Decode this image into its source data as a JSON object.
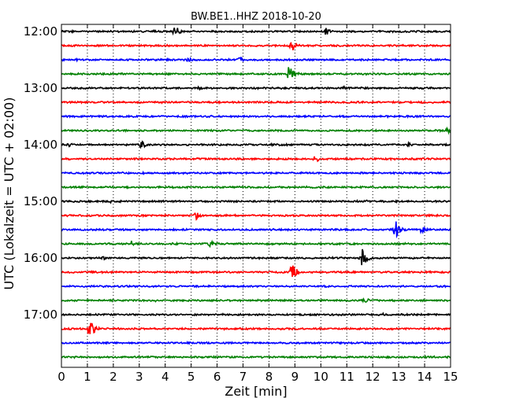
{
  "chart_data": {
    "type": "line",
    "title": "BW.BE1..HHZ 2018-10-20",
    "xlabel": "Zeit  [min]",
    "ylabel": "UTC (Lokalzeit = UTC + 02:00)",
    "xlim": [
      0,
      15
    ],
    "x_ticks": [
      "0",
      "1",
      "2",
      "3",
      "4",
      "5",
      "6",
      "7",
      "8",
      "9",
      "10",
      "11",
      "12",
      "13",
      "14",
      "15"
    ],
    "y_ticks": [
      "12:00",
      "13:00",
      "14:00",
      "15:00",
      "16:00",
      "17:00"
    ],
    "grid": "dotted-vertical",
    "series_colors": [
      "#000000",
      "#ff0000",
      "#0000ff",
      "#008000"
    ],
    "traces": [
      {
        "start": "12:00",
        "color": "#000000",
        "events": [
          {
            "t": 4.4,
            "amp": 8
          },
          {
            "t": 3.6,
            "amp": 2
          },
          {
            "t": 10.2,
            "amp": 5
          }
        ]
      },
      {
        "start": "12:15",
        "color": "#ff0000",
        "events": [
          {
            "t": 8.9,
            "amp": 8
          }
        ]
      },
      {
        "start": "12:30",
        "color": "#0000ff",
        "events": [
          {
            "t": 4.9,
            "amp": 3
          },
          {
            "t": 6.9,
            "amp": 4
          },
          {
            "t": 0.6,
            "amp": 2
          }
        ]
      },
      {
        "start": "12:45",
        "color": "#008000",
        "events": [
          {
            "t": 8.8,
            "amp": 13
          }
        ]
      },
      {
        "start": "13:00",
        "color": "#000000",
        "events": [
          {
            "t": 5.3,
            "amp": 3
          },
          {
            "t": 10.9,
            "amp": 2
          },
          {
            "t": 11.6,
            "amp": 2
          }
        ]
      },
      {
        "start": "13:15",
        "color": "#ff0000",
        "events": []
      },
      {
        "start": "13:30",
        "color": "#0000ff",
        "events": []
      },
      {
        "start": "13:45",
        "color": "#008000",
        "events": [
          {
            "t": 14.9,
            "amp": 4
          }
        ]
      },
      {
        "start": "14:00",
        "color": "#000000",
        "events": [
          {
            "t": 0.3,
            "amp": 3
          },
          {
            "t": 3.1,
            "amp": 5
          },
          {
            "t": 8.1,
            "amp": 2
          },
          {
            "t": 13.4,
            "amp": 3
          }
        ]
      },
      {
        "start": "14:15",
        "color": "#ff0000",
        "events": [
          {
            "t": 9.8,
            "amp": 5
          }
        ]
      },
      {
        "start": "14:30",
        "color": "#0000ff",
        "events": []
      },
      {
        "start": "14:45",
        "color": "#008000",
        "events": []
      },
      {
        "start": "15:00",
        "color": "#000000",
        "events": [
          {
            "t": 1.9,
            "amp": 2
          },
          {
            "t": 11.8,
            "amp": 2
          }
        ]
      },
      {
        "start": "15:15",
        "color": "#ff0000",
        "events": [
          {
            "t": 5.2,
            "amp": 5
          }
        ]
      },
      {
        "start": "15:30",
        "color": "#0000ff",
        "events": [
          {
            "t": 12.9,
            "amp": 12
          },
          {
            "t": 13.9,
            "amp": 5
          }
        ]
      },
      {
        "start": "15:45",
        "color": "#008000",
        "events": [
          {
            "t": 2.7,
            "amp": 4
          },
          {
            "t": 5.7,
            "amp": 5
          }
        ]
      },
      {
        "start": "16:00",
        "color": "#000000",
        "events": [
          {
            "t": 11.6,
            "amp": 13
          },
          {
            "t": 1.6,
            "amp": 3
          }
        ]
      },
      {
        "start": "16:15",
        "color": "#ff0000",
        "events": [
          {
            "t": 8.9,
            "amp": 13
          }
        ]
      },
      {
        "start": "16:30",
        "color": "#0000ff",
        "events": []
      },
      {
        "start": "16:45",
        "color": "#008000",
        "events": [
          {
            "t": 11.7,
            "amp": 4
          },
          {
            "t": 3.6,
            "amp": 2
          }
        ]
      },
      {
        "start": "17:00",
        "color": "#000000",
        "events": [
          {
            "t": 12.4,
            "amp": 2
          }
        ]
      },
      {
        "start": "17:15",
        "color": "#ff0000",
        "events": [
          {
            "t": 1.1,
            "amp": 13
          },
          {
            "t": 6.9,
            "amp": 2
          }
        ]
      },
      {
        "start": "17:30",
        "color": "#0000ff",
        "events": []
      },
      {
        "start": "17:45",
        "color": "#008000",
        "events": []
      }
    ]
  }
}
